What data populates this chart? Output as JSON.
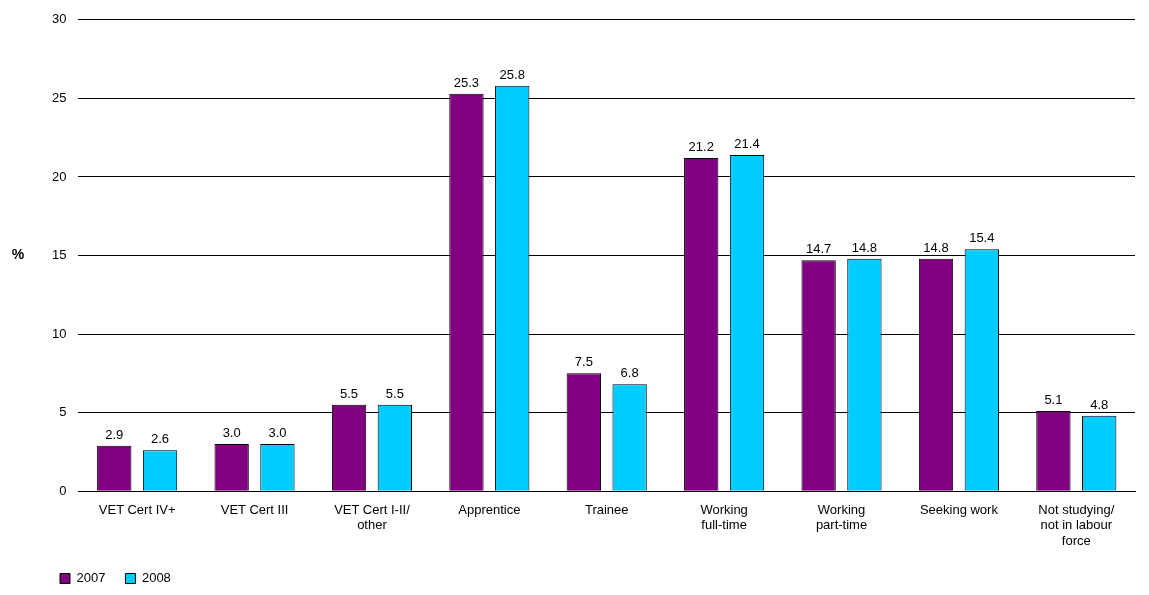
{
  "chart_data": {
    "type": "bar",
    "ylabel": "%",
    "categories": [
      "VET Cert IV+",
      "VET Cert III",
      "VET Cert I-II/ other",
      "Apprentice",
      "Trainee",
      "Working full-time",
      "Working part-time",
      "Seeking work",
      "Not studying/ not in labour force"
    ],
    "series": [
      {
        "name": "2007",
        "color": "#800080",
        "values": [
          2.9,
          3.0,
          5.5,
          25.3,
          7.5,
          21.2,
          14.7,
          14.8,
          5.1
        ],
        "value_labels": [
          "2.9",
          "3.0",
          "5.5",
          "25.3",
          "7.5",
          "21.2",
          "14.7",
          "14.8",
          "5.1"
        ]
      },
      {
        "name": "2008",
        "color": "#00ccff",
        "values": [
          2.6,
          3.0,
          5.5,
          25.8,
          6.8,
          21.4,
          14.8,
          15.4,
          4.8
        ],
        "value_labels": [
          "2.6",
          "3.0",
          "5.5",
          "25.8",
          "6.8",
          "21.4",
          "14.8",
          "15.4",
          "4.8"
        ]
      }
    ],
    "ylim": [
      0,
      30
    ],
    "yticks": [
      0,
      5,
      10,
      15,
      20,
      25,
      30
    ],
    "grid": "y",
    "legend": "bottom left"
  }
}
